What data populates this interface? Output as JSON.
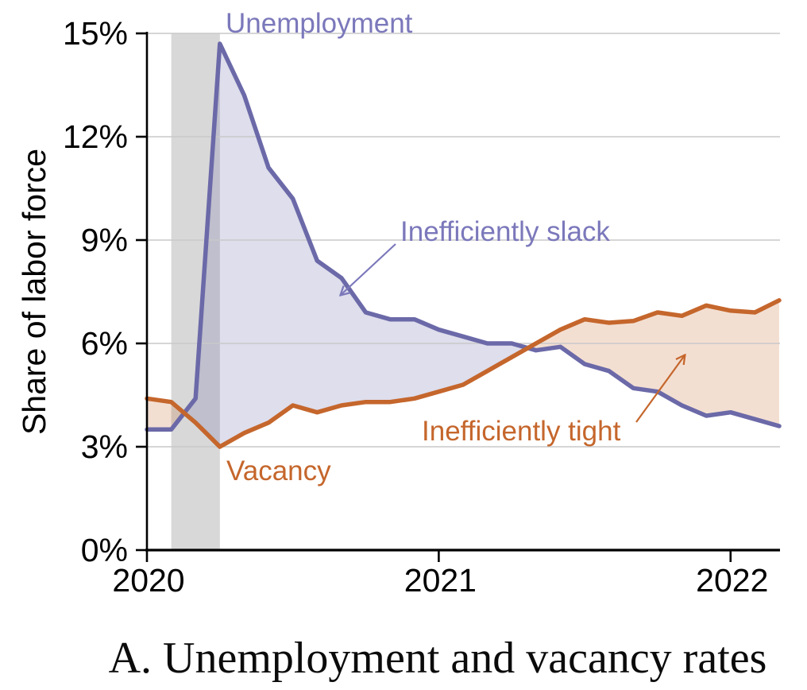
{
  "panel": {
    "title": "A. Unemployment and vacancy rates"
  },
  "chart_data": {
    "type": "line",
    "title": "A. Unemployment and vacancy rates",
    "xlabel": "",
    "ylabel": "Share of labor force",
    "ylim": [
      0,
      15
    ],
    "y_ticks": [
      0,
      3,
      6,
      9,
      12,
      15
    ],
    "y_tick_labels": [
      "0%",
      "3%",
      "6%",
      "9%",
      "12%",
      "15%"
    ],
    "x_tick_labels": [
      "2020",
      "2021",
      "2022"
    ],
    "x_tick_month_index": [
      0,
      12,
      24
    ],
    "grid": "horizontal",
    "legend_position": "inline-annotations",
    "months": [
      "2020-01",
      "2020-02",
      "2020-03",
      "2020-04",
      "2020-05",
      "2020-06",
      "2020-07",
      "2020-08",
      "2020-09",
      "2020-10",
      "2020-11",
      "2020-12",
      "2021-01",
      "2021-02",
      "2021-03",
      "2021-04",
      "2021-05",
      "2021-06",
      "2021-07",
      "2021-08",
      "2021-09",
      "2021-10",
      "2021-11",
      "2021-12",
      "2022-01",
      "2022-02",
      "2022-03"
    ],
    "series": [
      {
        "name": "Unemployment",
        "color": "#6b69a8",
        "values": [
          3.5,
          3.5,
          4.4,
          14.7,
          13.2,
          11.1,
          10.2,
          8.4,
          7.9,
          6.9,
          6.7,
          6.7,
          6.4,
          6.2,
          6.0,
          6.0,
          5.8,
          5.9,
          5.4,
          5.2,
          4.7,
          4.6,
          4.2,
          3.9,
          4.0,
          3.8,
          3.6
        ]
      },
      {
        "name": "Vacancy",
        "color": "#c5662c",
        "values": [
          4.4,
          4.3,
          3.7,
          3.0,
          3.4,
          3.7,
          4.2,
          4.0,
          4.2,
          4.3,
          4.3,
          4.4,
          4.6,
          4.8,
          5.2,
          5.6,
          6.0,
          6.4,
          6.7,
          6.6,
          6.65,
          6.9,
          6.8,
          7.1,
          6.95,
          6.9,
          7.25
        ]
      }
    ],
    "shaded_regions": [
      {
        "name": "Inefficiently slack",
        "condition": "unemployment > vacancy",
        "fill": "rgba(107,105,170,0.22)"
      },
      {
        "name": "Inefficiently tight",
        "condition": "vacancy > unemployment",
        "fill": "rgba(197,102,44,0.21)"
      }
    ],
    "recession_band": {
      "from_month": "2020-02",
      "to_month": "2020-04",
      "color": "#d8d8d8"
    }
  },
  "annotations": {
    "unemployment": {
      "text": "Unemployment",
      "color": "#7b78bb"
    },
    "vacancy": {
      "text": "Vacancy",
      "color": "#c5662c"
    },
    "slack": {
      "text": "Inefficiently slack",
      "color": "#7b78bb"
    },
    "tight": {
      "text": "Inefficiently tight",
      "color": "#c5662c"
    }
  },
  "colors": {
    "unemployment_line": "#6b69a8",
    "vacancy_line": "#c5662c",
    "slack_fill": "rgba(107,105,170,0.22)",
    "tight_fill": "rgba(197,102,44,0.21)",
    "recession_band": "#d8d8d8",
    "gridline": "#c9c9c9",
    "axis": "#000000"
  }
}
